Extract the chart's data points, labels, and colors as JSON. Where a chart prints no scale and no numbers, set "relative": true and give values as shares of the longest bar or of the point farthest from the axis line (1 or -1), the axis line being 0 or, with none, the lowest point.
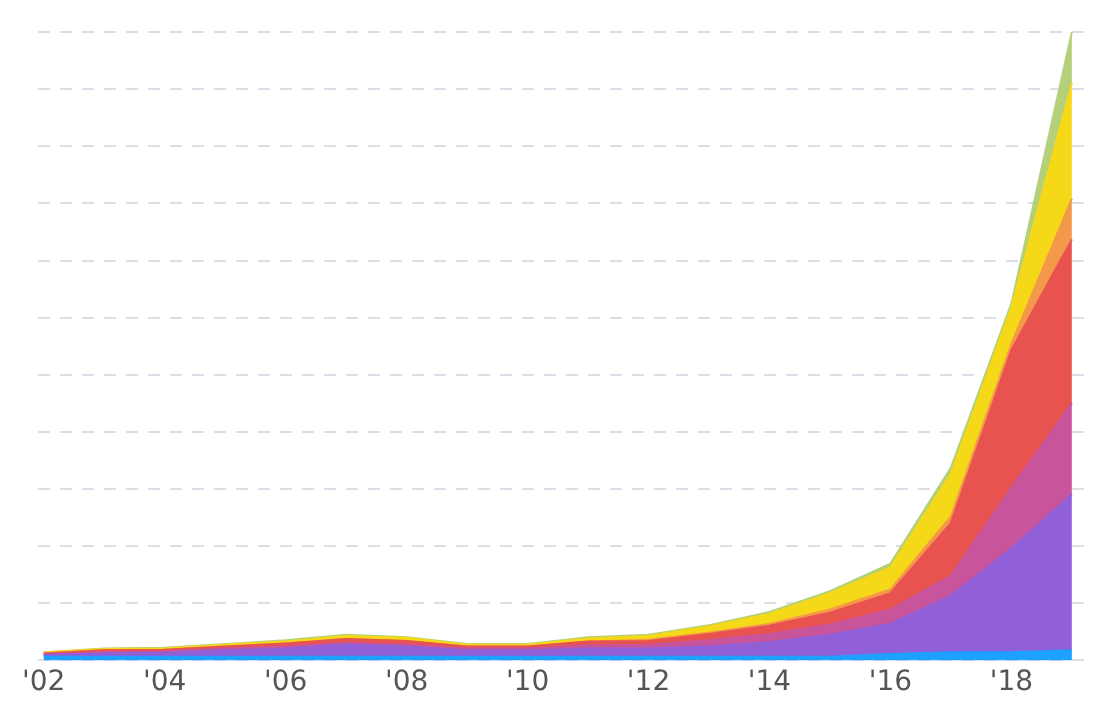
{
  "chart_data": {
    "type": "area",
    "stacked": true,
    "relative": true,
    "x": [
      2002,
      2003,
      2004,
      2005,
      2006,
      2007,
      2008,
      2009,
      2010,
      2011,
      2012,
      2013,
      2014,
      2015,
      2016,
      2017,
      2018,
      2019
    ],
    "xlim": [
      2001.9,
      2019.2
    ],
    "xticks": [
      {
        "value": 2002,
        "label": "'02"
      },
      {
        "value": 2004,
        "label": "'04"
      },
      {
        "value": 2006,
        "label": "'06"
      },
      {
        "value": 2008,
        "label": "'08"
      },
      {
        "value": 2010,
        "label": "'10"
      },
      {
        "value": 2012,
        "label": "'12"
      },
      {
        "value": 2014,
        "label": "'14"
      },
      {
        "value": 2016,
        "label": "'16"
      },
      {
        "value": 2018,
        "label": "'18"
      }
    ],
    "grid": "y",
    "legend": false,
    "marker": "none",
    "series": [
      {
        "color": "#1ea0ff",
        "values": [
          0.006,
          0.006,
          0.006,
          0.006,
          0.006,
          0.006,
          0.006,
          0.006,
          0.006,
          0.006,
          0.006,
          0.006,
          0.006,
          0.006,
          0.01,
          0.013,
          0.013,
          0.016
        ]
      },
      {
        "color": "#915fd8",
        "values": [
          0.003,
          0.005,
          0.006,
          0.01,
          0.013,
          0.019,
          0.016,
          0.01,
          0.01,
          0.013,
          0.013,
          0.016,
          0.023,
          0.035,
          0.048,
          0.09,
          0.165,
          0.248
        ]
      },
      {
        "color": "#c8559b",
        "values": [
          0,
          0.002,
          0.002,
          0.003,
          0.003,
          0.003,
          0.003,
          0.003,
          0.003,
          0.005,
          0.006,
          0.01,
          0.013,
          0.016,
          0.023,
          0.032,
          0.097,
          0.145
        ]
      },
      {
        "color": "#e8534f",
        "values": [
          0.002,
          0.003,
          0.003,
          0.003,
          0.005,
          0.006,
          0.006,
          0.003,
          0.003,
          0.006,
          0.006,
          0.01,
          0.013,
          0.019,
          0.026,
          0.084,
          0.219,
          0.261
        ]
      },
      {
        "color": "#f4984a",
        "values": [
          0,
          0,
          0,
          0,
          0,
          0,
          0,
          0,
          0,
          0,
          0.002,
          0.002,
          0.003,
          0.005,
          0.006,
          0.01,
          0.01,
          0.065
        ]
      },
      {
        "color": "#f5d817",
        "values": [
          0.002,
          0.002,
          0.002,
          0.003,
          0.003,
          0.005,
          0.005,
          0.003,
          0.003,
          0.005,
          0.006,
          0.01,
          0.016,
          0.026,
          0.035,
          0.068,
          0.058,
          0.184
        ]
      },
      {
        "color": "#b5d07a",
        "values": [
          0,
          0.001,
          0.001,
          0.001,
          0.002,
          0.002,
          0.001,
          0.001,
          0.001,
          0.002,
          0.002,
          0.002,
          0.003,
          0.003,
          0.006,
          0.01,
          0.006,
          0.081
        ]
      }
    ]
  }
}
